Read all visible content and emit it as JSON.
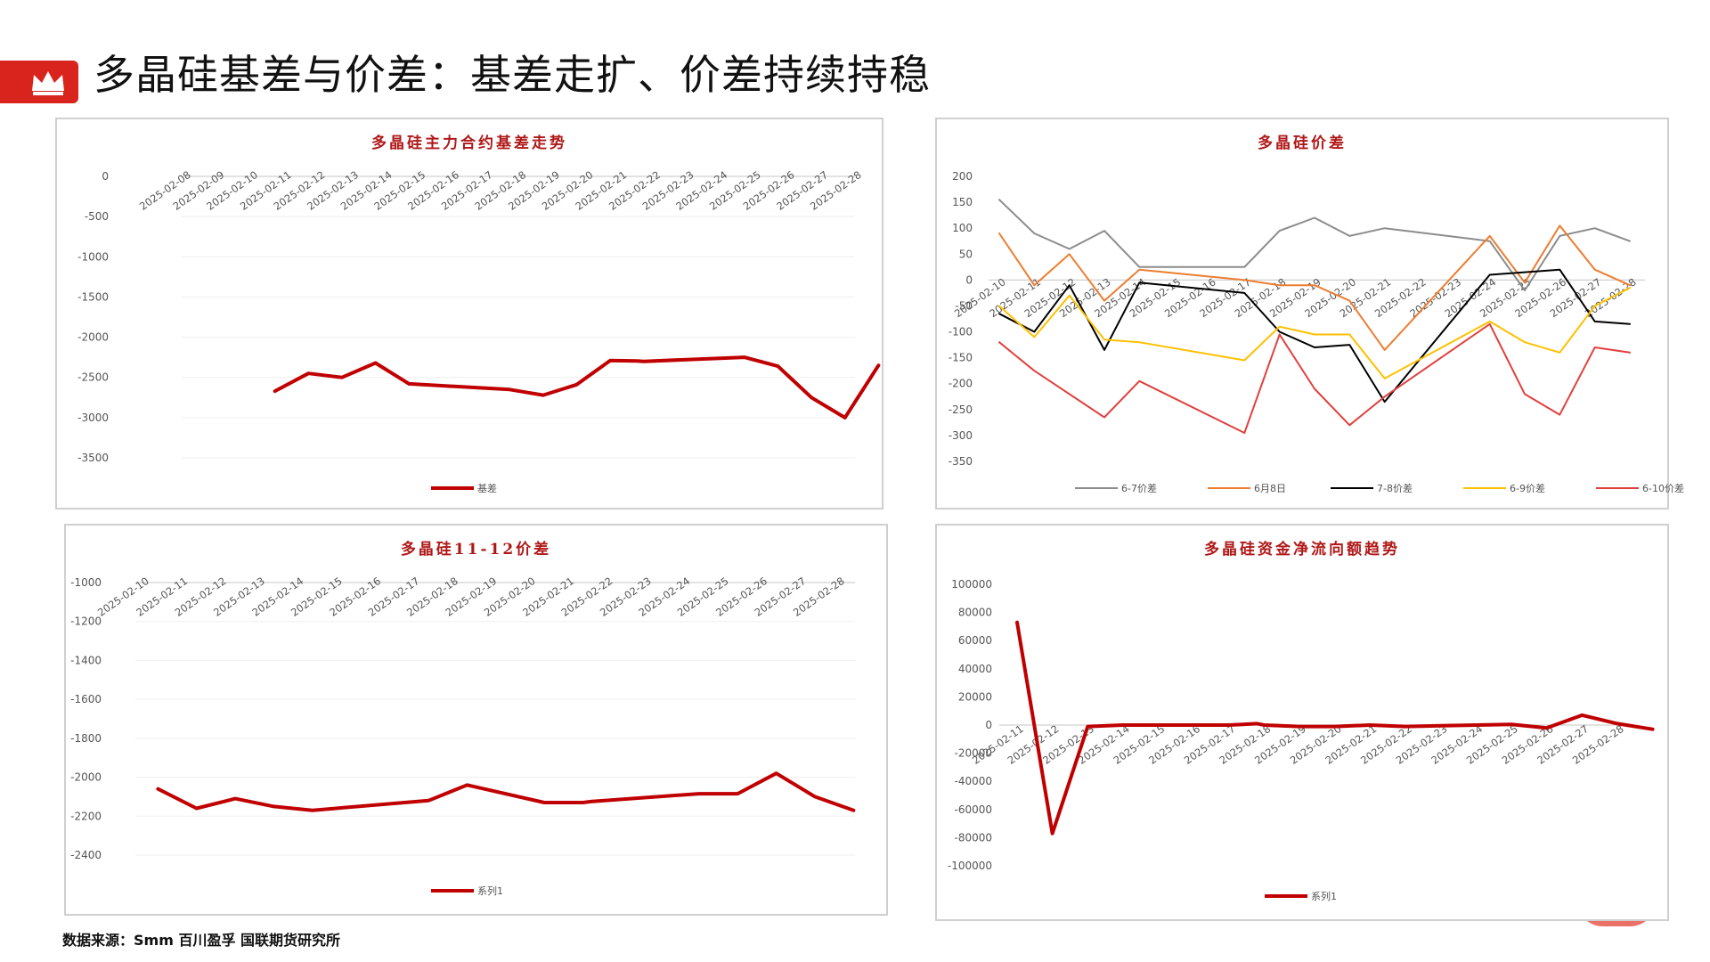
{
  "page": {
    "title": "多晶硅基差与价差：基差走扩、价差持续持稳",
    "source": "数据来源：Smm  百川盈孚  国联期货研究所"
  },
  "chart_data": [
    {
      "id": "basis",
      "type": "line",
      "title": "多晶硅主力合约基差走势",
      "categories": [
        "2025-02-08",
        "2025-02-09",
        "2025-02-10",
        "2025-02-11",
        "2025-02-12",
        "2025-02-13",
        "2025-02-14",
        "2025-02-15",
        "2025-02-16",
        "2025-02-17",
        "2025-02-18",
        "2025-02-19",
        "2025-02-20",
        "2025-02-21",
        "2025-02-22",
        "2025-02-23",
        "2025-02-24",
        "2025-02-25",
        "2025-02-26",
        "2025-02-27",
        "2025-02-28"
      ],
      "yticks": [
        0,
        -500,
        -1000,
        -1500,
        -2000,
        -2500,
        -3000,
        -3500
      ],
      "ylim": [
        -3500,
        0
      ],
      "xaxis_at": 0,
      "series": [
        {
          "name": "基差",
          "color": "#c00000",
          "width": 4,
          "points": [
            [
              2.7,
              -2670
            ],
            [
              3.7,
              -2450
            ],
            [
              4.7,
              -2500
            ],
            [
              5.7,
              -2320
            ],
            [
              6.7,
              -2580
            ],
            [
              9.7,
              -2650
            ],
            [
              10.7,
              -2720
            ],
            [
              11.7,
              -2590
            ],
            [
              12.7,
              -2290
            ],
            [
              13.5,
              -2295
            ],
            [
              13.7,
              -2300
            ],
            [
              16.7,
              -2250
            ],
            [
              17.7,
              -2360
            ],
            [
              18.7,
              -2750
            ],
            [
              19.7,
              -3000
            ],
            [
              20.7,
              -2350
            ]
          ]
        }
      ]
    },
    {
      "id": "spreads",
      "type": "line",
      "title": "多晶硅价差",
      "categories": [
        "2025-02-10",
        "2025-02-11",
        "2025-02-12",
        "2025-02-13",
        "2025-02-14",
        "2025-02-15",
        "2025-02-16",
        "2025-02-17",
        "2025-02-18",
        "2025-02-19",
        "2025-02-20",
        "2025-02-21",
        "2025-02-22",
        "2025-02-23",
        "2025-02-24",
        "2025-02-25",
        "2025-02-26",
        "2025-02-27",
        "2025-02-28"
      ],
      "yticks": [
        200,
        150,
        100,
        50,
        0,
        -50,
        -100,
        -150,
        -200,
        -250,
        -300,
        -350
      ],
      "ylim": [
        -350,
        200
      ],
      "xaxis_at": 0,
      "series": [
        {
          "name": "6-7价差",
          "color": "#8c8c8c",
          "width": 2,
          "points": [
            [
              0,
              155
            ],
            [
              1,
              90
            ],
            [
              2,
              60
            ],
            [
              3,
              95
            ],
            [
              4,
              25
            ],
            [
              7,
              25
            ],
            [
              8,
              95
            ],
            [
              9,
              120
            ],
            [
              10,
              85
            ],
            [
              11,
              100
            ],
            [
              14,
              75
            ],
            [
              15,
              -20
            ],
            [
              16,
              85
            ],
            [
              17,
              100
            ],
            [
              18,
              75
            ]
          ]
        },
        {
          "name": "6月8日",
          "color": "#ed7d31",
          "width": 2,
          "points": [
            [
              0,
              90
            ],
            [
              1,
              -10
            ],
            [
              2,
              50
            ],
            [
              3,
              -40
            ],
            [
              4,
              20
            ],
            [
              7,
              0
            ],
            [
              8,
              -10
            ],
            [
              9,
              -10
            ],
            [
              10,
              -40
            ],
            [
              11,
              -135
            ],
            [
              14,
              85
            ],
            [
              15,
              -5
            ],
            [
              16,
              105
            ],
            [
              17,
              20
            ],
            [
              18,
              -10
            ]
          ]
        },
        {
          "name": "7-8价差",
          "color": "#000000",
          "width": 2,
          "points": [
            [
              0,
              -65
            ],
            [
              1,
              -100
            ],
            [
              2,
              -10
            ],
            [
              3,
              -135
            ],
            [
              4,
              -5
            ],
            [
              7,
              -25
            ],
            [
              8,
              -100
            ],
            [
              9,
              -130
            ],
            [
              10,
              -125
            ],
            [
              11,
              -235
            ],
            [
              14,
              10
            ],
            [
              16,
              20
            ],
            [
              17,
              -80
            ],
            [
              18,
              -85
            ]
          ]
        },
        {
          "name": "6-9价差",
          "color": "#ffc000",
          "width": 2,
          "points": [
            [
              0,
              -50
            ],
            [
              1,
              -110
            ],
            [
              2,
              -30
            ],
            [
              3,
              -115
            ],
            [
              4,
              -120
            ],
            [
              7,
              -155
            ],
            [
              8,
              -90
            ],
            [
              9,
              -105
            ],
            [
              10,
              -105
            ],
            [
              11,
              -190
            ],
            [
              14,
              -80
            ],
            [
              15,
              -120
            ],
            [
              16,
              -140
            ],
            [
              17,
              -50
            ],
            [
              18,
              -15
            ]
          ]
        },
        {
          "name": "6-10价差",
          "color": "#e0413e",
          "width": 2,
          "points": [
            [
              0,
              -120
            ],
            [
              1,
              -175
            ],
            [
              3,
              -265
            ],
            [
              4,
              -195
            ],
            [
              7,
              -295
            ],
            [
              8,
              -105
            ],
            [
              9,
              -210
            ],
            [
              10,
              -280
            ],
            [
              11,
              -225
            ],
            [
              14,
              -85
            ],
            [
              15,
              -220
            ],
            [
              16,
              -260
            ],
            [
              17,
              -130
            ],
            [
              18,
              -140
            ]
          ]
        }
      ]
    },
    {
      "id": "spread1112",
      "type": "line",
      "title": "多晶硅11-12价差",
      "categories": [
        "2025-02-10",
        "2025-02-11",
        "2025-02-12",
        "2025-02-13",
        "2025-02-14",
        "2025-02-15",
        "2025-02-16",
        "2025-02-17",
        "2025-02-18",
        "2025-02-19",
        "2025-02-20",
        "2025-02-21",
        "2025-02-22",
        "2025-02-23",
        "2025-02-24",
        "2025-02-25",
        "2025-02-26",
        "2025-02-27",
        "2025-02-28"
      ],
      "yticks": [
        -1000,
        -1200,
        -1400,
        -1600,
        -1800,
        -2000,
        -2200,
        -2400
      ],
      "ylim": [
        -2400,
        -1000
      ],
      "xaxis_at": -1000,
      "series": [
        {
          "name": "系列1",
          "color": "#c00000",
          "width": 4,
          "points": [
            [
              0.4,
              -2060
            ],
            [
              1.4,
              -2160
            ],
            [
              2.4,
              -2110
            ],
            [
              3.4,
              -2150
            ],
            [
              4.4,
              -2170
            ],
            [
              7.4,
              -2120
            ],
            [
              8.4,
              -2040
            ],
            [
              10.4,
              -2130
            ],
            [
              11.4,
              -2130
            ],
            [
              11.6,
              -2125
            ],
            [
              14.4,
              -2085
            ],
            [
              15.4,
              -2085
            ],
            [
              16.4,
              -1980
            ],
            [
              17.4,
              -2100
            ],
            [
              18.4,
              -2170
            ]
          ]
        }
      ]
    },
    {
      "id": "flow",
      "type": "line",
      "title": "多晶硅资金净流向额趋势",
      "categories": [
        "2025-02-11",
        "2025-02-12",
        "2025-02-13",
        "2025-02-14",
        "2025-02-15",
        "2025-02-16",
        "2025-02-17",
        "2025-02-18",
        "2025-02-19",
        "2025-02-20",
        "2025-02-21",
        "2025-02-22",
        "2025-02-23",
        "2025-02-24",
        "2025-02-25",
        "2025-02-26",
        "2025-02-27",
        "2025-02-28"
      ],
      "yticks": [
        100000,
        80000,
        60000,
        40000,
        20000,
        0,
        -20000,
        -40000,
        -60000,
        -80000,
        -100000
      ],
      "ylim": [
        -100000,
        100000
      ],
      "xaxis_at": 0,
      "series": [
        {
          "name": "系列1",
          "color": "#c00000",
          "width": 4,
          "points": [
            [
              0,
              73000
            ],
            [
              1,
              -77000
            ],
            [
              2,
              -1000
            ],
            [
              3,
              0
            ],
            [
              6,
              0
            ],
            [
              6.8,
              1000
            ],
            [
              7,
              0
            ],
            [
              8,
              -1000
            ],
            [
              9,
              -1000
            ],
            [
              10,
              0
            ],
            [
              11,
              -1000
            ],
            [
              12,
              -500
            ],
            [
              13,
              0
            ],
            [
              14,
              500
            ],
            [
              15,
              -2000
            ],
            [
              16,
              7000
            ],
            [
              17,
              1000
            ],
            [
              18,
              -3000
            ]
          ]
        }
      ]
    }
  ]
}
